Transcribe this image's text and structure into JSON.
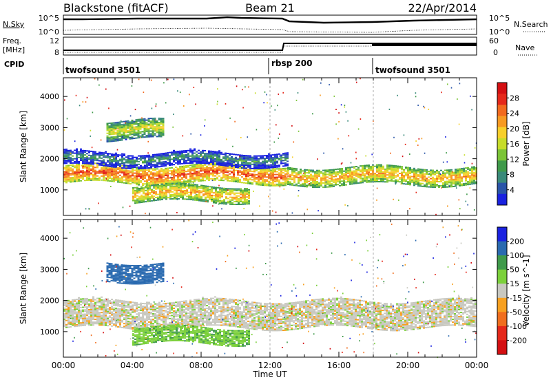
{
  "header": {
    "title": "Blackstone (fitACF)",
    "beam": "Beam 21",
    "date": "22/Apr/2014"
  },
  "top_panels": {
    "noise": {
      "left_label": "N.Sky",
      "left_ticks": [
        "10^5",
        "10^0"
      ],
      "right_label": "N.Search",
      "right_ticks": [
        "10^5",
        "10^0"
      ]
    },
    "freq": {
      "left_label_1": "Freq.",
      "left_label_2": "[MHz]",
      "left_ticks": [
        "12",
        "8"
      ],
      "right_label": "Nave",
      "right_ticks": [
        "60",
        "0"
      ]
    },
    "cpid": {
      "label": "CPID",
      "segments": [
        "twofsound 3501",
        "rbsp 200",
        "twofsound 3501"
      ]
    }
  },
  "x_axis": {
    "label": "Time UT",
    "ticks": [
      "00:00",
      "04:00",
      "08:00",
      "12:00",
      "16:00",
      "20:00",
      "00:00"
    ]
  },
  "chart_data": [
    {
      "type": "heatmap",
      "title": "Power",
      "ylabel": "Slant Range [km]",
      "yticks": [
        1000,
        2000,
        3000,
        4000
      ],
      "ylim": [
        180,
        4600
      ],
      "xlim": [
        0,
        24
      ],
      "colorbar": {
        "label": "Power [dB]",
        "ticks": [
          "4",
          "8",
          "12",
          "16",
          "20",
          "24",
          "28"
        ],
        "colors": [
          "#1a22e0",
          "#2a55a8",
          "#3a8a7a",
          "#3f9a4a",
          "#7bc436",
          "#c7dc2a",
          "#f7cf2a",
          "#f79a22",
          "#f26a1e",
          "#e5281a",
          "#d40f12"
        ]
      },
      "bands": [
        {
          "name": "main echo band",
          "t_start": 0,
          "t_end": 13,
          "range_start": 1200,
          "range_end": 1750,
          "power": 26
        },
        {
          "name": "upper band",
          "t_start": 0,
          "t_end": 13,
          "range_start": 1750,
          "range_end": 2200,
          "power": 10
        },
        {
          "name": "lower E-region band",
          "t_start": 4,
          "t_end": 10.8,
          "range_start": 600,
          "range_end": 1100,
          "power": 22
        },
        {
          "name": "high-range patch",
          "t_start": 2.5,
          "t_end": 5.8,
          "range_start": 2600,
          "range_end": 3200,
          "power": 18
        },
        {
          "name": "afternoon band",
          "t_start": 13,
          "t_end": 24,
          "range_start": 1150,
          "range_end": 1700,
          "power": 22
        }
      ]
    },
    {
      "type": "heatmap",
      "title": "Velocity",
      "ylabel": "Slant Range [km]",
      "yticks": [
        1000,
        2000,
        3000,
        4000
      ],
      "ylim": [
        180,
        4600
      ],
      "xlim": [
        0,
        24
      ],
      "colorbar": {
        "label": "Velocity [m s^-1]",
        "ticks": [
          "200",
          "100",
          "50",
          "15",
          "-15",
          "-50",
          "-100",
          "-200"
        ],
        "colors": [
          "#1a22e0",
          "#2a6ab0",
          "#3f9a4a",
          "#7bd03a",
          "#c8c8c0",
          "#f7a020",
          "#f06e1e",
          "#e5281a",
          "#d40f12"
        ]
      },
      "bands": [
        {
          "name": "ground scatter band",
          "t_start": 0,
          "t_end": 24,
          "range_start": 1100,
          "range_end": 2000,
          "velocity": 0
        },
        {
          "name": "upper band",
          "t_start": 2.5,
          "t_end": 5.8,
          "range_start": 2600,
          "range_end": 3200,
          "velocity": 120
        },
        {
          "name": "lower band",
          "t_start": 4,
          "t_end": 10.8,
          "range_start": 600,
          "range_end": 1100,
          "velocity": 40
        }
      ]
    }
  ]
}
